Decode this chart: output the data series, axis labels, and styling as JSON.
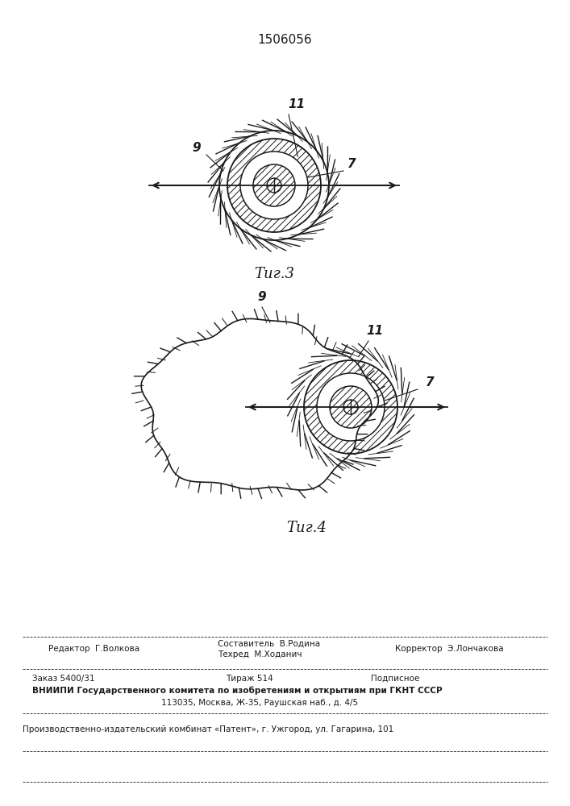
{
  "title_number": "1506056",
  "fig3_label": "Τиг.3",
  "fig4_label": "Τиг.4",
  "label_9": "9",
  "label_7": "7",
  "label_11": "11",
  "footer_editor": "Редактор  Г.Волкова",
  "footer_comp": "Составитель  В.Родина",
  "footer_tech": "Техред  М.Ходанич",
  "footer_corr": "Корректор  Э.Лончакова",
  "footer_order": "Заказ 5400/31",
  "footer_tirazh": "Тираж 514",
  "footer_podp": "Подписное",
  "footer_vniip": "ВНИИПИ Государственного комитета по изобретениям и открытиям при ГКНТ СССР",
  "footer_addr": "113035, Москва, Ж-35, Раушская наб., д. 4/5",
  "footer_prod": "Производственно-издательский комбинат «Патент», г. Ужгород, ул. Гагарина, 101",
  "bg_color": "#ffffff",
  "line_color": "#1a1a1a"
}
